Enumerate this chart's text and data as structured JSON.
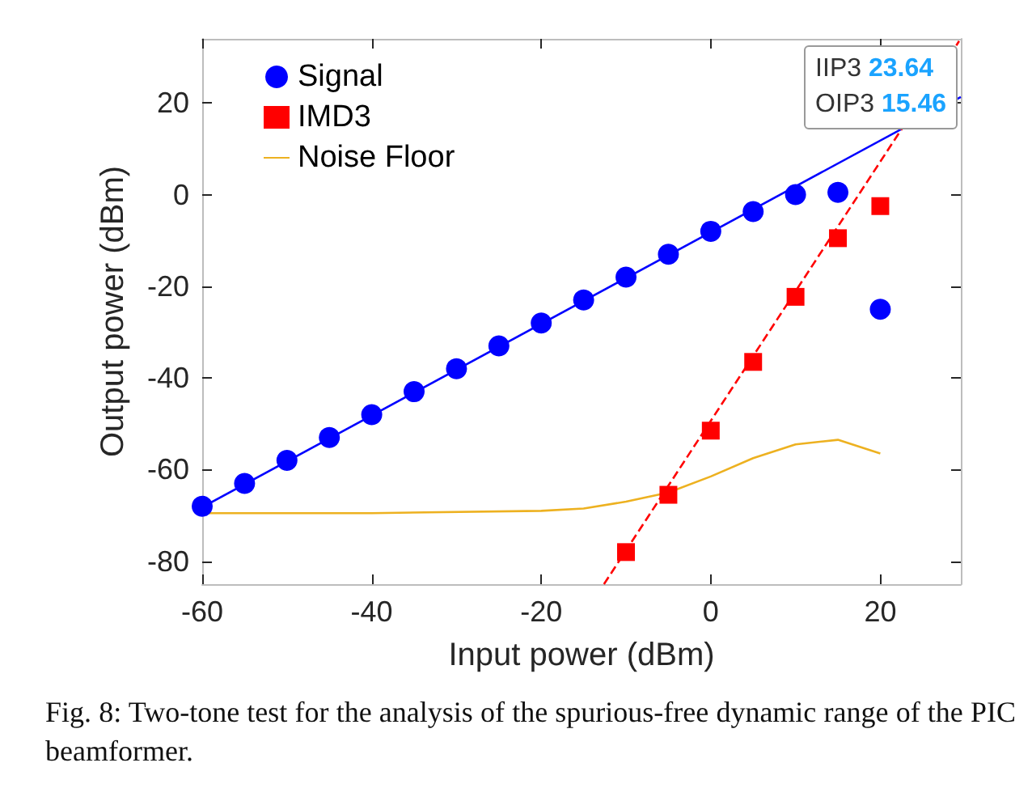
{
  "chart_data": {
    "type": "scatter",
    "xlabel": "Input power (dBm)",
    "ylabel": "Output power (dBm)",
    "xlim": [
      -60,
      29.5
    ],
    "ylim": [
      -85,
      34
    ],
    "xticks": [
      -60,
      -40,
      -20,
      0,
      20
    ],
    "yticks": [
      -80,
      -60,
      -40,
      -20,
      0,
      20
    ],
    "grid": false,
    "legend": "top left",
    "series": [
      {
        "name": "Signal",
        "marker": "circle",
        "color": "#0000ff",
        "x": [
          -60,
          -55,
          -50,
          -45,
          -40,
          -35,
          -30,
          -25,
          -20,
          -15,
          -10,
          -5,
          0,
          5,
          10,
          15,
          20
        ],
        "values": [
          -68,
          -63,
          -58,
          -53,
          -48,
          -43,
          -38,
          -33,
          -28,
          -23,
          -18,
          -13,
          -8,
          -3.7,
          0,
          0.5,
          -25
        ]
      },
      {
        "name": "IMD3",
        "marker": "square",
        "color": "#ff0000",
        "x": [
          -10,
          -5,
          0,
          5,
          10,
          15,
          20
        ],
        "values": [
          -78,
          -65.5,
          -51.5,
          -36.5,
          -22.3,
          -9.5,
          -2.5
        ]
      },
      {
        "name": "Noise Floor",
        "type": "line",
        "marker": "none",
        "line_style": "solid",
        "color": "#edb120",
        "x": [
          -60,
          -40,
          -20,
          -15,
          -10,
          -5,
          0,
          5,
          10,
          15,
          20
        ],
        "values": [
          -69.5,
          -69.5,
          -69,
          -68.5,
          -67,
          -65,
          -61.5,
          -57.5,
          -54.5,
          -53.5,
          -56.5
        ]
      },
      {
        "type": "line",
        "marker": "none",
        "line_style": "solid",
        "color": "#0000ff",
        "x": [
          -60,
          29.5
        ],
        "values": [
          -68.2,
          21.3
        ]
      },
      {
        "type": "line",
        "marker": "none",
        "line_style": "dashed",
        "color": "#ff0000",
        "x": [
          -12.6,
          29.3
        ],
        "values": [
          -85,
          33.5
        ]
      }
    ],
    "annotations": [
      "IIP3 23.64",
      "OIP3 15.46",
      "Fig. 8: Two-tone test for the analysis of the spurious-free dynamic range of the PIC beamformer."
    ]
  }
}
